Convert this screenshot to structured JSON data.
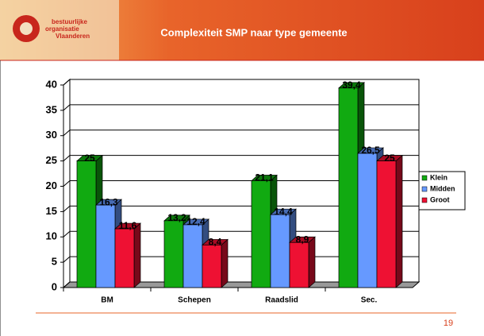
{
  "logo": [
    "bestuurlijke",
    "organisatie",
    "Vlaanderen"
  ],
  "page_number": "19",
  "chart_data": {
    "type": "bar3d",
    "title": "Complexiteit SMP naar type gemeente",
    "categories": [
      "BM",
      "Schepen",
      "Raadslid",
      "Sec."
    ],
    "series": [
      {
        "name": "Klein",
        "color": "#11aa11",
        "values": [
          25,
          13.2,
          21.1,
          39.4
        ],
        "value_labels": [
          "25",
          "13,2",
          "21,1",
          "39,4"
        ]
      },
      {
        "name": "Midden",
        "color": "#6699ff",
        "values": [
          16.3,
          12.4,
          14.4,
          26.5
        ],
        "value_labels": [
          "16,3",
          "12,4",
          "14,4",
          "26,5"
        ]
      },
      {
        "name": "Groot",
        "color": "#ee1133",
        "values": [
          11.6,
          8.4,
          8.9,
          25
        ],
        "value_labels": [
          "11,6",
          "8,4",
          "8,9",
          "25"
        ]
      }
    ],
    "ylim": [
      0,
      40
    ],
    "yticks": [
      0,
      5,
      10,
      15,
      20,
      25,
      30,
      35,
      40
    ],
    "grid": true,
    "legend": "right"
  }
}
